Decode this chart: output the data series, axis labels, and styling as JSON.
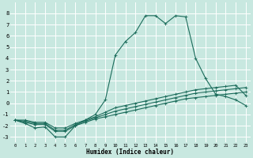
{
  "xlabel": "Humidex (Indice chaleur)",
  "background_color": "#c8e8e0",
  "grid_color": "#ffffff",
  "line_color": "#1a6b5a",
  "ylim": [
    -3.5,
    9.0
  ],
  "xlim": [
    -0.5,
    23.5
  ],
  "yticks": [
    -3,
    -2,
    -1,
    0,
    1,
    2,
    3,
    4,
    5,
    6,
    7,
    8
  ],
  "xticks": [
    0,
    1,
    2,
    3,
    4,
    5,
    6,
    7,
    8,
    9,
    10,
    11,
    12,
    13,
    14,
    15,
    16,
    17,
    18,
    19,
    20,
    21,
    22,
    23
  ],
  "series": [
    {
      "x": [
        0,
        1,
        2,
        3,
        4,
        5,
        6,
        7,
        8,
        9,
        10,
        11,
        12,
        13,
        14,
        15,
        16,
        17,
        18,
        19,
        20,
        21,
        22,
        23
      ],
      "y": [
        -1.5,
        -1.8,
        -2.2,
        -2.1,
        -3.0,
        -3.0,
        -2.0,
        -1.5,
        -1.0,
        0.3,
        4.3,
        5.5,
        6.3,
        7.8,
        7.8,
        7.1,
        7.8,
        7.7,
        4.0,
        2.2,
        0.8,
        0.6,
        0.3,
        -0.2
      ],
      "marker": "+"
    },
    {
      "x": [
        0,
        1,
        2,
        3,
        4,
        5,
        6,
        7,
        8,
        9,
        10,
        11,
        12,
        13,
        14,
        15,
        16,
        17,
        18,
        19,
        20,
        21,
        22,
        23
      ],
      "y": [
        -1.5,
        -1.7,
        -1.9,
        -1.9,
        -2.5,
        -2.5,
        -2.0,
        -1.7,
        -1.4,
        -1.2,
        -1.0,
        -0.8,
        -0.6,
        -0.4,
        -0.2,
        0.0,
        0.2,
        0.4,
        0.5,
        0.6,
        0.7,
        0.8,
        0.9,
        1.0
      ],
      "marker": "+"
    },
    {
      "x": [
        0,
        1,
        2,
        3,
        4,
        5,
        6,
        7,
        8,
        9,
        10,
        11,
        12,
        13,
        14,
        15,
        16,
        17,
        18,
        19,
        20,
        21,
        22,
        23
      ],
      "y": [
        -1.5,
        -1.6,
        -1.8,
        -1.8,
        -2.4,
        -2.4,
        -1.9,
        -1.6,
        -1.3,
        -1.0,
        -0.7,
        -0.5,
        -0.3,
        -0.1,
        0.1,
        0.3,
        0.5,
        0.7,
        0.9,
        1.0,
        1.1,
        1.2,
        1.3,
        1.4
      ],
      "marker": "+"
    },
    {
      "x": [
        0,
        1,
        2,
        3,
        4,
        5,
        6,
        7,
        8,
        9,
        10,
        11,
        12,
        13,
        14,
        15,
        16,
        17,
        18,
        19,
        20,
        21,
        22,
        23
      ],
      "y": [
        -1.5,
        -1.5,
        -1.7,
        -1.7,
        -2.2,
        -2.2,
        -1.8,
        -1.5,
        -1.2,
        -0.8,
        -0.4,
        -0.2,
        0.0,
        0.2,
        0.4,
        0.6,
        0.8,
        1.0,
        1.2,
        1.3,
        1.4,
        1.5,
        1.6,
        0.7
      ],
      "marker": "+"
    }
  ]
}
